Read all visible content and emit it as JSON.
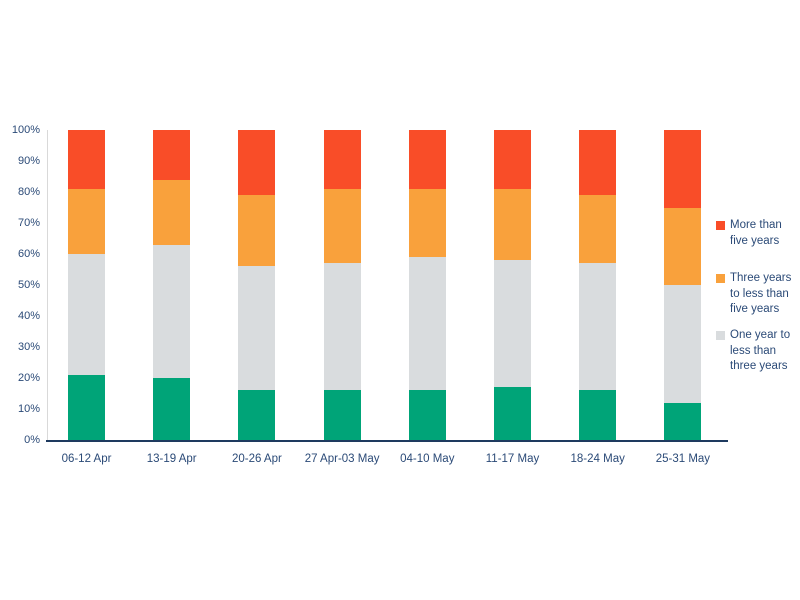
{
  "chart_data": {
    "type": "bar",
    "stacking": "percent",
    "orientation": "vertical-columns",
    "title": "",
    "xlabel": "",
    "ylabel": "",
    "ylim": [
      0,
      100
    ],
    "gridlines": false,
    "y_ticks": [
      "0%",
      "10%",
      "20%",
      "30%",
      "40%",
      "50%",
      "60%",
      "70%",
      "80%",
      "90%",
      "100%"
    ],
    "categories": [
      "06-12 Apr",
      "13-19 Apr",
      "20-26 Apr",
      "27 Apr-03 May",
      "04-10 May",
      "11-17 May",
      "18-24 May",
      "25-31 May"
    ],
    "series": [
      {
        "name": "",
        "color": "#00A478",
        "in_legend": false,
        "values": [
          21,
          20,
          16,
          16,
          16,
          17,
          16,
          12
        ]
      },
      {
        "name": "One year to less than three years",
        "color": "#D9DCDE",
        "in_legend": true,
        "values": [
          39,
          43,
          40,
          41,
          43,
          41,
          41,
          38
        ]
      },
      {
        "name": "Three years to less than five years",
        "color": "#F9A13C",
        "in_legend": true,
        "values": [
          21,
          21,
          23,
          24,
          22,
          23,
          22,
          25
        ]
      },
      {
        "name": "More than five years",
        "color": "#F94D28",
        "in_legend": true,
        "values": [
          19,
          16,
          21,
          19,
          19,
          19,
          21,
          25
        ]
      }
    ],
    "legend": {
      "position": "right",
      "entries": [
        {
          "label": "More than five years",
          "color": "#F94D28"
        },
        {
          "label": "Three years to less than five years",
          "color": "#F9A13C"
        },
        {
          "label": "One year to less than three years",
          "color": "#D9DCDE"
        }
      ]
    }
  },
  "colors": {
    "axis_text": "#2B4A77",
    "axis_line": "#1E3A5F",
    "y_axis_line": "#D9D9D9",
    "background": "#FFFFFF"
  }
}
